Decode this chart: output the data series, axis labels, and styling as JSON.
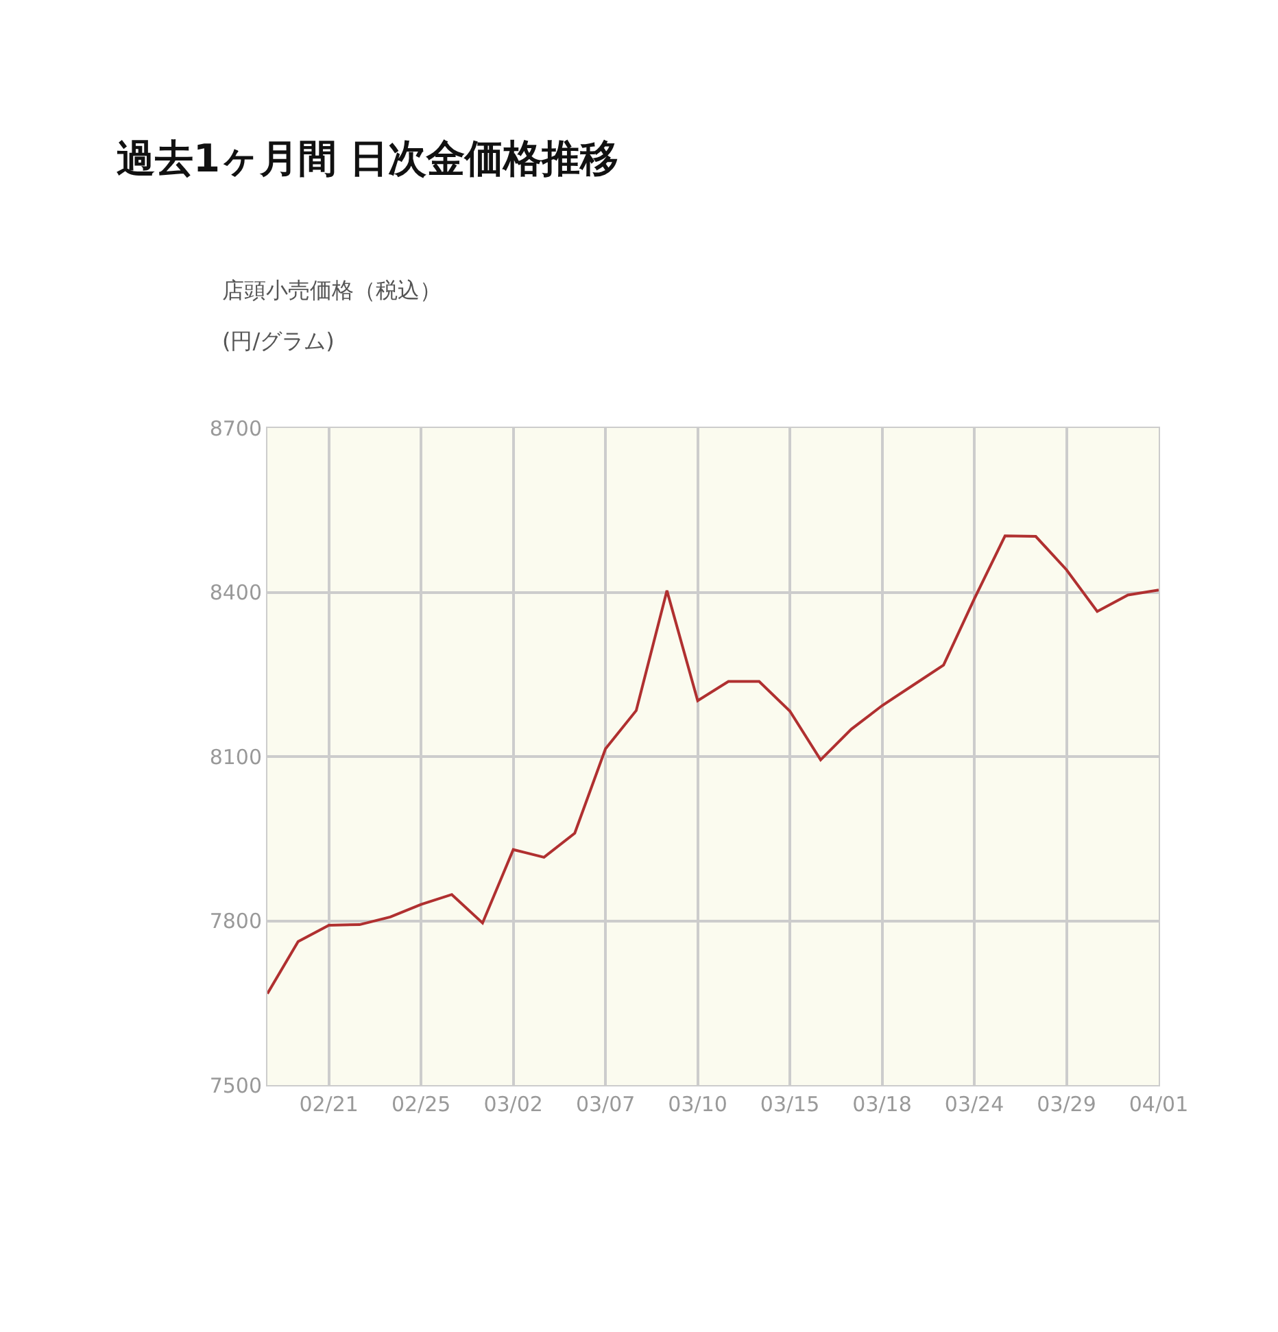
{
  "chart_data": {
    "type": "line",
    "title": "過去1ヶ月間 日次金価格推移",
    "subtitle": "店頭小売価格（税込）",
    "ylabel": "(円/グラム)",
    "categories": [
      null,
      null,
      "02/21",
      null,
      null,
      "02/25",
      null,
      null,
      "03/02",
      null,
      null,
      "03/07",
      null,
      null,
      "03/10",
      null,
      null,
      "03/15",
      null,
      null,
      "03/18",
      null,
      null,
      "03/24",
      null,
      null,
      "03/29",
      null,
      null,
      "04/01"
    ],
    "series": [
      {
        "color": "#b03030",
        "values": [
          7667,
          7762,
          7792,
          7793,
          7807,
          7830,
          7848,
          7796,
          7930,
          7916,
          7960,
          8114,
          8184,
          8403,
          8202,
          8237,
          8237,
          8183,
          8094,
          8150,
          8193,
          8230,
          8267,
          8388,
          8503,
          8502,
          8441,
          8365,
          8395,
          8404
        ]
      }
    ],
    "ylim": [
      7500,
      8700
    ],
    "yticks": [
      7500,
      7800,
      8100,
      8400,
      8700
    ],
    "grid": true,
    "marker": "none",
    "line_style": "solid"
  }
}
